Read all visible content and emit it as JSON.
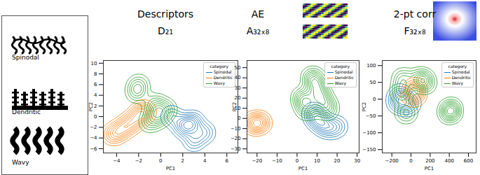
{
  "microstructures": {
    "labels": [
      "Spinodal",
      "Dendritic",
      "Wavy"
    ]
  },
  "chart_data": [
    {
      "type": "contour",
      "title": "Descriptors",
      "subtitle": "D₂₁",
      "x_label": "PC1",
      "y_label": "PC2",
      "legend": "upper right",
      "legend_title": "category",
      "xlim": [
        -5.2,
        7
      ],
      "xticks": [
        -4,
        -2,
        0,
        2,
        4,
        6
      ],
      "ylim": [
        -6.8,
        10.5
      ],
      "yticks": [
        -6,
        -4,
        -2,
        0,
        2,
        4,
        6,
        8,
        10
      ],
      "series": [
        {
          "name": "Spinodal",
          "color": "#1f77b4",
          "values": [
            [
              3,
              -1
            ],
            [
              2,
              -2
            ],
            [
              4,
              -3
            ],
            [
              1,
              0
            ],
            [
              3,
              -4.5
            ],
            [
              2.5,
              -1.5
            ]
          ]
        },
        {
          "name": "Dendritic",
          "color": "#ff7f0e",
          "values": [
            [
              -4.3,
              -3.3
            ],
            [
              -3.5,
              -2.3
            ],
            [
              -2.7,
              -1.2
            ],
            [
              -2,
              0
            ],
            [
              -1.5,
              1
            ]
          ]
        },
        {
          "name": "Wavy",
          "color": "#2ca02c",
          "values": [
            [
              -2,
              6
            ],
            [
              -2.2,
              4.5
            ],
            [
              -0.5,
              0.5
            ],
            [
              0,
              0
            ],
            [
              -1,
              -1
            ],
            [
              0.5,
              1.5
            ],
            [
              -0.5,
              2.5
            ]
          ]
        }
      ]
    },
    {
      "type": "contour",
      "title": "AE",
      "subtitle": "A₃₂ₓ₈",
      "x_label": "PC1",
      "y_label": "PC2",
      "legend": "upper right",
      "legend_title": "category",
      "xlim": [
        -25,
        31
      ],
      "xticks": [
        -20,
        -10,
        0,
        10,
        20,
        30
      ],
      "ylim": [
        -34,
        57
      ],
      "yticks": [
        -30,
        -20,
        -10,
        0,
        10,
        20,
        30,
        40,
        50
      ],
      "series": [
        {
          "name": "Spinodal",
          "color": "#1f77b4",
          "values": [
            [
              10,
              0
            ],
            [
              15,
              -10
            ],
            [
              8,
              5
            ],
            [
              20,
              -8
            ],
            [
              12,
              -4
            ]
          ]
        },
        {
          "name": "Dendritic",
          "color": "#ff7f0e",
          "values": [
            [
              -22,
              -5
            ],
            [
              -18,
              -4
            ],
            [
              -20,
              -4.5
            ]
          ]
        },
        {
          "name": "Wavy",
          "color": "#2ca02c",
          "values": [
            [
              5,
              10
            ],
            [
              10,
              30
            ],
            [
              12,
              20
            ],
            [
              8,
              40
            ],
            [
              15,
              10
            ],
            [
              3,
              20
            ]
          ]
        }
      ]
    },
    {
      "type": "contour",
      "title": "2-pt corr",
      "subtitle": "F₃₂ₓ₈",
      "x_label": "PC1",
      "y_label": "PC2",
      "legend": "upper right",
      "legend_title": "category",
      "xlim": [
        -300,
        680
      ],
      "xticks": [
        -200,
        0,
        200,
        400,
        600
      ],
      "ylim": [
        -160,
        115
      ],
      "yticks": [
        -150,
        -100,
        -50,
        0,
        50,
        100
      ],
      "series": [
        {
          "name": "Spinodal",
          "color": "#1f77b4",
          "values": [
            [
              -150,
              -10
            ],
            [
              -100,
              0
            ],
            [
              -50,
              -20
            ],
            [
              0,
              -10
            ],
            [
              -120,
              15
            ]
          ]
        },
        {
          "name": "Dendritic",
          "color": "#ff7f0e",
          "values": [
            [
              30,
              10
            ],
            [
              40,
              30
            ]
          ]
        },
        {
          "name": "Wavy",
          "color": "#2ca02c",
          "values": [
            [
              -100,
              20
            ],
            [
              -50,
              -40
            ],
            [
              150,
              50
            ],
            [
              100,
              60
            ],
            [
              400,
              -40
            ],
            [
              420,
              -30
            ],
            [
              -80,
              60
            ]
          ]
        }
      ]
    }
  ]
}
